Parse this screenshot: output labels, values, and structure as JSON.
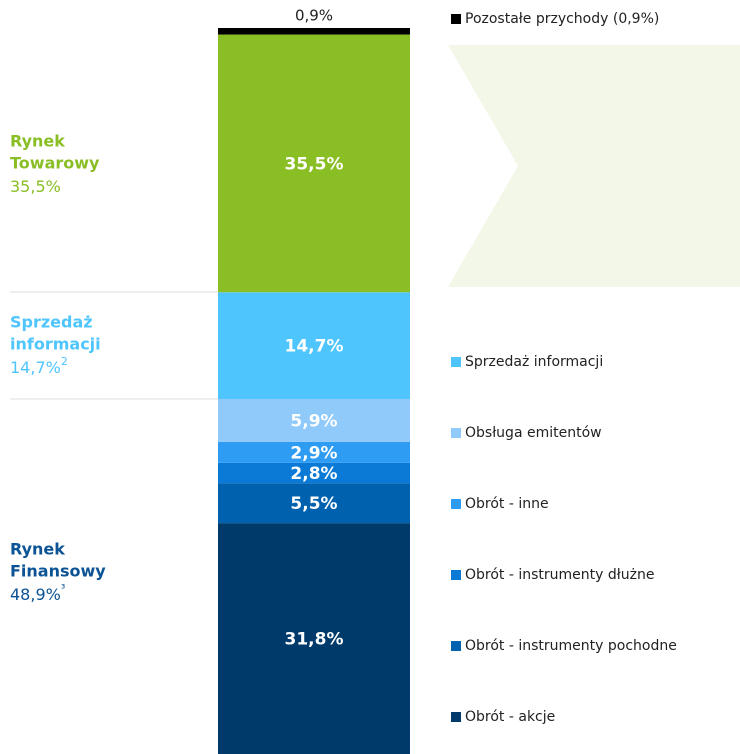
{
  "chart_data": {
    "type": "stacked_bar",
    "categories": [
      null
    ],
    "ylim": [
      0,
      100
    ],
    "series": [
      {
        "name": "Obrót - akcje",
        "color": "#003a6b",
        "values": [
          31.8
        ],
        "value_labels": [
          "31,8%"
        ]
      },
      {
        "name": "Obrót - instrumenty pochodne",
        "color": "#0061ae",
        "values": [
          5.5
        ],
        "value_labels": [
          "5,5%"
        ]
      },
      {
        "name": "Obrót - instrumenty dłużne",
        "color": "#0a7ad6",
        "values": [
          2.8
        ],
        "value_labels": [
          "2,8%"
        ]
      },
      {
        "name": "Obrót - inne",
        "color": "#2f9cf4",
        "values": [
          2.9
        ],
        "value_labels": [
          "2,9%"
        ]
      },
      {
        "name": "Obsługa emitentów",
        "color": "#8fcafb",
        "values": [
          5.9
        ],
        "value_labels": [
          "5,9%"
        ]
      },
      {
        "name": "Sprzedaż informacji",
        "color": "#4fc5fe",
        "values": [
          14.7
        ],
        "value_labels": [
          "14,7%"
        ]
      },
      {
        "color": "#8abe25",
        "values": [
          35.5
        ],
        "value_labels": [
          "35,5%"
        ]
      },
      {
        "name": "Pozostałe przychody (0,9%)",
        "color": "#000000",
        "values": [
          0.9
        ],
        "value_labels": [
          "0,9%"
        ]
      }
    ],
    "groups": [
      {
        "name": [
          "Rynek",
          "Towarowy"
        ],
        "value_label": "35,5%",
        "color": "#8abe25"
      },
      {
        "name": [
          "Sprzedaż",
          "informacji"
        ],
        "value_label": "14,7%",
        "note": "2",
        "color": "#4fc5fe"
      },
      {
        "name": [
          "Rynek",
          "Finansowy"
        ],
        "value_label": "48,9%",
        "note": "³",
        "color": "#0b5394"
      }
    ]
  }
}
